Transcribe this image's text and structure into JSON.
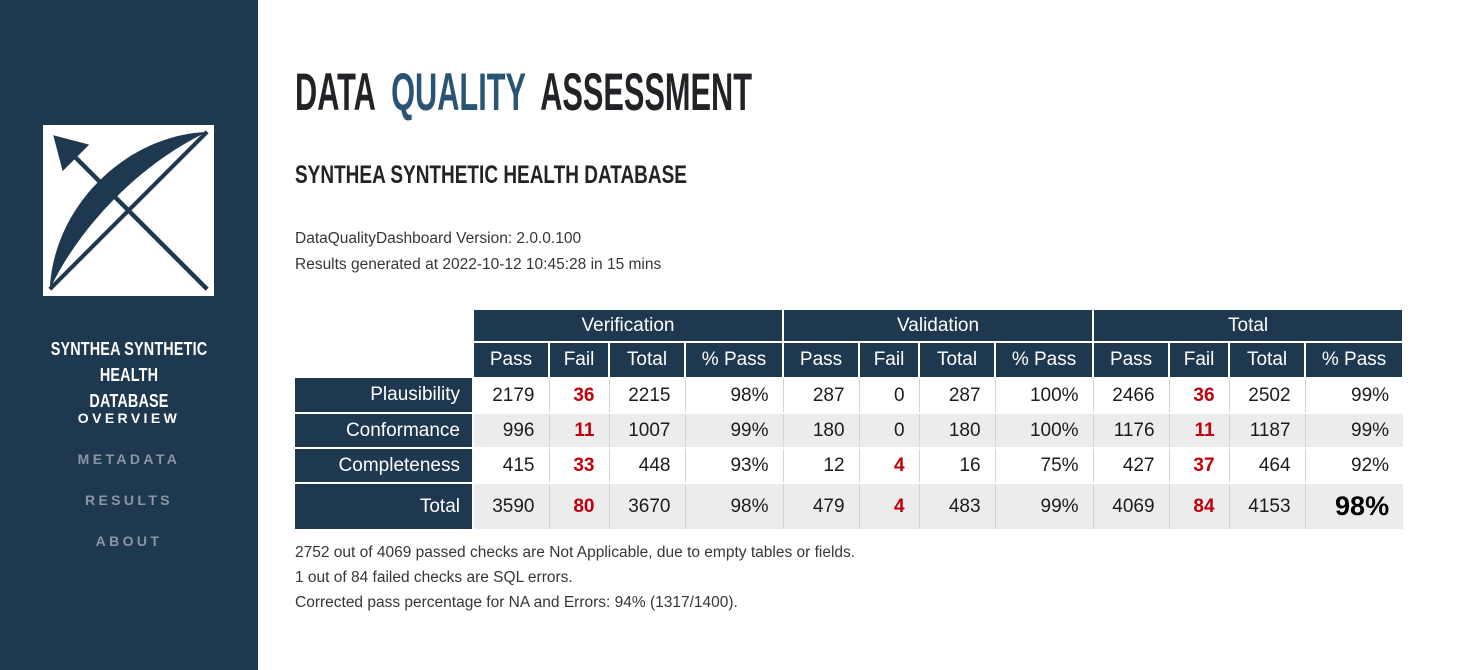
{
  "colors": {
    "sidebar_navy": "#1e384f",
    "table_header_navy": "#1e384f",
    "accent_blue": "#2a5474",
    "fail_red": "#c0000c",
    "alt_row_gray": "#ececec"
  },
  "sidebar": {
    "logo_icon": "bow-and-arrow-logo",
    "database_name": "SYNTHEA SYNTHETIC HEALTH DATABASE",
    "database_name_line1": "SYNTHEA SYNTHETIC HEALTH",
    "database_name_line2": "DATABASE",
    "nav": [
      {
        "label": "OVERVIEW",
        "active": true
      },
      {
        "label": "METADATA",
        "active": false
      },
      {
        "label": "RESULTS",
        "active": false
      },
      {
        "label": "ABOUT",
        "active": false
      }
    ]
  },
  "header": {
    "title_segments": [
      {
        "text": "DATA",
        "accent": false
      },
      {
        "text": "QUALITY",
        "accent": true
      },
      {
        "text": "ASSESSMENT",
        "accent": false
      }
    ],
    "subtitle": "SYNTHEA SYNTHETIC HEALTH DATABASE",
    "version_line": "DataQualityDashboard Version: 2.0.0.100",
    "generated_line": "Results generated at 2022-10-12 10:45:28 in 15 mins"
  },
  "table": {
    "groups": [
      "Verification",
      "Validation",
      "Total"
    ],
    "subheaders": [
      "Pass",
      "Fail",
      "Total",
      "% Pass"
    ],
    "rows": [
      {
        "label": "Plausibility",
        "total_row": false,
        "cells": [
          {
            "v": "2179"
          },
          {
            "v": "36",
            "red": true
          },
          {
            "v": "2215"
          },
          {
            "v": "98%"
          },
          {
            "v": "287"
          },
          {
            "v": "0"
          },
          {
            "v": "287"
          },
          {
            "v": "100%"
          },
          {
            "v": "2466"
          },
          {
            "v": "36",
            "red": true
          },
          {
            "v": "2502"
          },
          {
            "v": "99%"
          }
        ]
      },
      {
        "label": "Conformance",
        "total_row": false,
        "cells": [
          {
            "v": "996"
          },
          {
            "v": "11",
            "red": true
          },
          {
            "v": "1007"
          },
          {
            "v": "99%"
          },
          {
            "v": "180"
          },
          {
            "v": "0"
          },
          {
            "v": "180"
          },
          {
            "v": "100%"
          },
          {
            "v": "1176"
          },
          {
            "v": "11",
            "red": true
          },
          {
            "v": "1187"
          },
          {
            "v": "99%"
          }
        ]
      },
      {
        "label": "Completeness",
        "total_row": false,
        "cells": [
          {
            "v": "415"
          },
          {
            "v": "33",
            "red": true
          },
          {
            "v": "448"
          },
          {
            "v": "93%"
          },
          {
            "v": "12"
          },
          {
            "v": "4",
            "red": true
          },
          {
            "v": "16"
          },
          {
            "v": "75%"
          },
          {
            "v": "427"
          },
          {
            "v": "37",
            "red": true
          },
          {
            "v": "464"
          },
          {
            "v": "92%"
          }
        ]
      },
      {
        "label": "Total",
        "total_row": true,
        "cells": [
          {
            "v": "3590"
          },
          {
            "v": "80",
            "red": true
          },
          {
            "v": "3670"
          },
          {
            "v": "98%"
          },
          {
            "v": "479"
          },
          {
            "v": "4",
            "red": true
          },
          {
            "v": "483"
          },
          {
            "v": "99%"
          },
          {
            "v": "4069"
          },
          {
            "v": "84",
            "red": true
          },
          {
            "v": "4153"
          },
          {
            "v": "98%",
            "big": true
          }
        ]
      }
    ]
  },
  "footnotes": [
    "2752 out of 4069 passed checks are Not Applicable, due to empty tables or fields.",
    "1 out of 84 failed checks are SQL errors.",
    "Corrected pass percentage for NA and Errors: 94% (1317/1400)."
  ]
}
